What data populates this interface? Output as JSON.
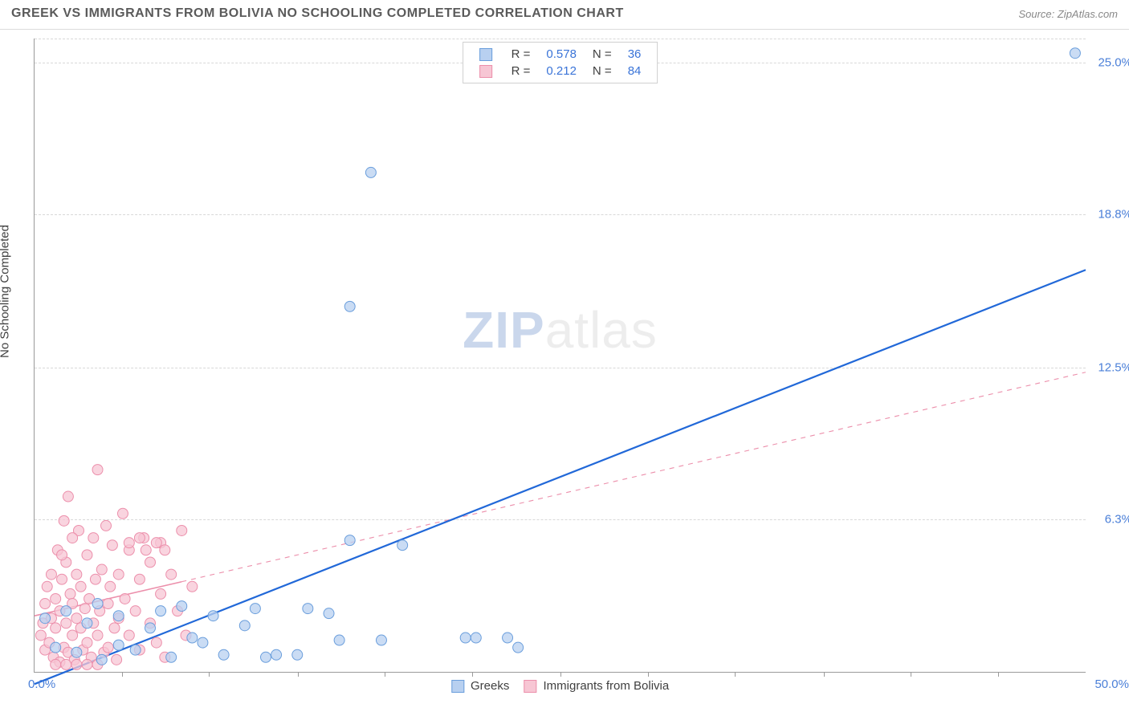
{
  "header": {
    "title": "GREEK VS IMMIGRANTS FROM BOLIVIA NO SCHOOLING COMPLETED CORRELATION CHART",
    "source": "Source: ZipAtlas.com"
  },
  "chart": {
    "type": "scatter",
    "ylabel": "No Schooling Completed",
    "xlim": [
      0,
      50
    ],
    "ylim": [
      0,
      26
    ],
    "xtick_labels": [
      "0.0%",
      "50.0%"
    ],
    "xtick_positions_pct": [
      8.3,
      16.6,
      25,
      33.3,
      41.6,
      50,
      58.3,
      66.6,
      75,
      83.3,
      91.6
    ],
    "ytick_labels": [
      "6.3%",
      "12.5%",
      "18.8%",
      "25.0%"
    ],
    "ytick_values": [
      6.3,
      12.5,
      18.8,
      25.0
    ],
    "grid_color": "#d8d8d8",
    "axis_color": "#9a9a9a",
    "background_color": "#ffffff",
    "watermark": "ZIPatlas",
    "series": {
      "a": {
        "name": "Greeks",
        "color_fill": "#b8d0f0",
        "color_stroke": "#6a9edc",
        "marker_size": 6.5,
        "trend_color": "#2168d8",
        "trend_width": 2.2,
        "trend_solid_until_x": 50,
        "trend": {
          "x1": 0,
          "y1": -0.5,
          "x2": 50,
          "y2": 16.5
        },
        "R": "0.578",
        "N": "36",
        "points": [
          [
            0.5,
            2.2
          ],
          [
            1.0,
            1.0
          ],
          [
            1.5,
            2.5
          ],
          [
            2.0,
            0.8
          ],
          [
            2.5,
            2.0
          ],
          [
            3.0,
            2.8
          ],
          [
            3.2,
            0.5
          ],
          [
            4.0,
            1.1
          ],
          [
            4.0,
            2.3
          ],
          [
            4.8,
            0.9
          ],
          [
            5.5,
            1.8
          ],
          [
            6.0,
            2.5
          ],
          [
            6.5,
            0.6
          ],
          [
            7.0,
            2.7
          ],
          [
            7.5,
            1.4
          ],
          [
            8.0,
            1.2
          ],
          [
            8.5,
            2.3
          ],
          [
            9.0,
            0.7
          ],
          [
            10.0,
            1.9
          ],
          [
            10.5,
            2.6
          ],
          [
            11.0,
            0.6
          ],
          [
            11.5,
            0.7
          ],
          [
            12.5,
            0.7
          ],
          [
            13.0,
            2.6
          ],
          [
            14.0,
            2.4
          ],
          [
            14.5,
            1.3
          ],
          [
            15.0,
            5.4
          ],
          [
            16.5,
            1.3
          ],
          [
            17.5,
            5.2
          ],
          [
            20.5,
            1.4
          ],
          [
            21.0,
            1.4
          ],
          [
            22.5,
            1.4
          ],
          [
            23.0,
            1.0
          ],
          [
            15.0,
            15.0
          ],
          [
            16.0,
            20.5
          ],
          [
            49.5,
            25.4
          ]
        ]
      },
      "b": {
        "name": "Immigrants from Bolivia",
        "color_fill": "#f7c6d4",
        "color_stroke": "#ec8fab",
        "marker_size": 6.5,
        "trend_color": "#ec8fab",
        "trend_width": 1.6,
        "trend_solid_until_x": 7,
        "trend": {
          "x1": 0,
          "y1": 2.3,
          "x2": 50,
          "y2": 12.3
        },
        "R": "0.212",
        "N": "84",
        "points": [
          [
            0.3,
            1.5
          ],
          [
            0.4,
            2.0
          ],
          [
            0.5,
            2.8
          ],
          [
            0.5,
            0.9
          ],
          [
            0.6,
            3.5
          ],
          [
            0.7,
            1.2
          ],
          [
            0.8,
            4.0
          ],
          [
            0.8,
            2.2
          ],
          [
            0.9,
            0.6
          ],
          [
            1.0,
            3.0
          ],
          [
            1.0,
            1.8
          ],
          [
            1.1,
            5.0
          ],
          [
            1.2,
            2.5
          ],
          [
            1.2,
            0.4
          ],
          [
            1.3,
            3.8
          ],
          [
            1.4,
            1.0
          ],
          [
            1.4,
            6.2
          ],
          [
            1.5,
            2.0
          ],
          [
            1.5,
            4.5
          ],
          [
            1.6,
            0.8
          ],
          [
            1.6,
            7.2
          ],
          [
            1.7,
            3.2
          ],
          [
            1.8,
            1.5
          ],
          [
            1.8,
            2.8
          ],
          [
            1.9,
            0.5
          ],
          [
            2.0,
            4.0
          ],
          [
            2.0,
            2.2
          ],
          [
            2.1,
            5.8
          ],
          [
            2.2,
            1.8
          ],
          [
            2.2,
            3.5
          ],
          [
            2.3,
            0.9
          ],
          [
            2.4,
            2.6
          ],
          [
            2.5,
            4.8
          ],
          [
            2.5,
            1.2
          ],
          [
            2.6,
            3.0
          ],
          [
            2.7,
            0.6
          ],
          [
            2.8,
            5.5
          ],
          [
            2.8,
            2.0
          ],
          [
            2.9,
            3.8
          ],
          [
            3.0,
            1.5
          ],
          [
            3.0,
            8.3
          ],
          [
            3.1,
            2.5
          ],
          [
            3.2,
            4.2
          ],
          [
            3.3,
            0.8
          ],
          [
            3.4,
            6.0
          ],
          [
            3.5,
            2.8
          ],
          [
            3.5,
            1.0
          ],
          [
            3.6,
            3.5
          ],
          [
            3.7,
            5.2
          ],
          [
            3.8,
            1.8
          ],
          [
            3.9,
            0.5
          ],
          [
            4.0,
            4.0
          ],
          [
            4.0,
            2.2
          ],
          [
            4.2,
            6.5
          ],
          [
            4.3,
            3.0
          ],
          [
            4.5,
            1.5
          ],
          [
            4.5,
            5.0
          ],
          [
            4.8,
            2.5
          ],
          [
            5.0,
            3.8
          ],
          [
            5.0,
            0.9
          ],
          [
            5.2,
            5.5
          ],
          [
            5.5,
            2.0
          ],
          [
            5.5,
            4.5
          ],
          [
            5.8,
            1.2
          ],
          [
            6.0,
            3.2
          ],
          [
            6.0,
            5.3
          ],
          [
            6.2,
            0.6
          ],
          [
            6.5,
            4.0
          ],
          [
            6.8,
            2.5
          ],
          [
            7.0,
            5.8
          ],
          [
            7.2,
            1.5
          ],
          [
            7.5,
            3.5
          ],
          [
            5.0,
            5.5
          ],
          [
            5.3,
            5.0
          ],
          [
            5.8,
            5.3
          ],
          [
            6.2,
            5.0
          ],
          [
            4.5,
            5.3
          ],
          [
            1.0,
            0.3
          ],
          [
            1.5,
            0.3
          ],
          [
            2.0,
            0.3
          ],
          [
            2.5,
            0.3
          ],
          [
            3.0,
            0.3
          ],
          [
            1.3,
            4.8
          ],
          [
            1.8,
            5.5
          ]
        ]
      }
    },
    "legend_top": {
      "R_label": "R =",
      "N_label": "N ="
    },
    "legend_bottom": {
      "a": "Greeks",
      "b": "Immigrants from Bolivia"
    }
  }
}
